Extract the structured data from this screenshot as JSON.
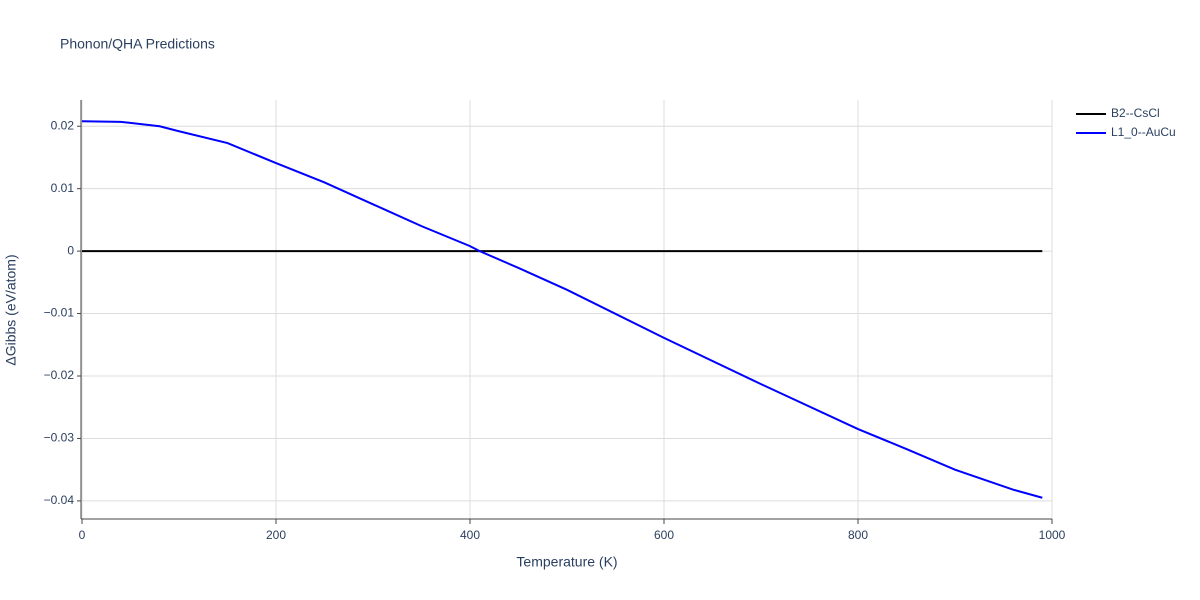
{
  "chart_data": {
    "type": "line",
    "title": "Phonon/QHA Predictions",
    "x_label": "Temperature (K)",
    "y_label": "ΔGibbs (eV/atom)",
    "x": [
      0,
      40,
      80,
      100,
      150,
      200,
      250,
      300,
      350,
      400,
      410,
      450,
      500,
      600,
      700,
      800,
      850,
      900,
      960,
      990
    ],
    "series": [
      {
        "name": "B2--CsCl",
        "color": "#000000",
        "values": [
          0,
          0,
          0,
          0,
          0,
          0,
          0,
          0,
          0,
          0,
          0,
          0,
          0,
          0,
          0,
          0,
          0,
          0,
          0,
          0
        ]
      },
      {
        "name": "L1_0--AuCu",
        "color": "#0000ff",
        "values": [
          0.0208,
          0.0207,
          0.02,
          0.0192,
          0.0173,
          0.0141,
          0.011,
          0.0075,
          0.004,
          0.0008,
          0,
          -0.0027,
          -0.0062,
          -0.0139,
          -0.0213,
          -0.0285,
          -0.0317,
          -0.035,
          -0.0382,
          -0.0395
        ]
      }
    ],
    "xlim": [
      0,
      1000
    ],
    "xticks": [
      0,
      200,
      400,
      600,
      800,
      1000
    ],
    "ylim": [
      -0.0429,
      0.0242
    ],
    "yticks": [
      {
        "value": -0.04,
        "label": "−0.04"
      },
      {
        "value": -0.03,
        "label": "−0.03"
      },
      {
        "value": -0.02,
        "label": "−0.02"
      },
      {
        "value": -0.01,
        "label": "−0.01"
      },
      0,
      0.01,
      0.02
    ],
    "grid": true,
    "legend": "outside-right"
  }
}
